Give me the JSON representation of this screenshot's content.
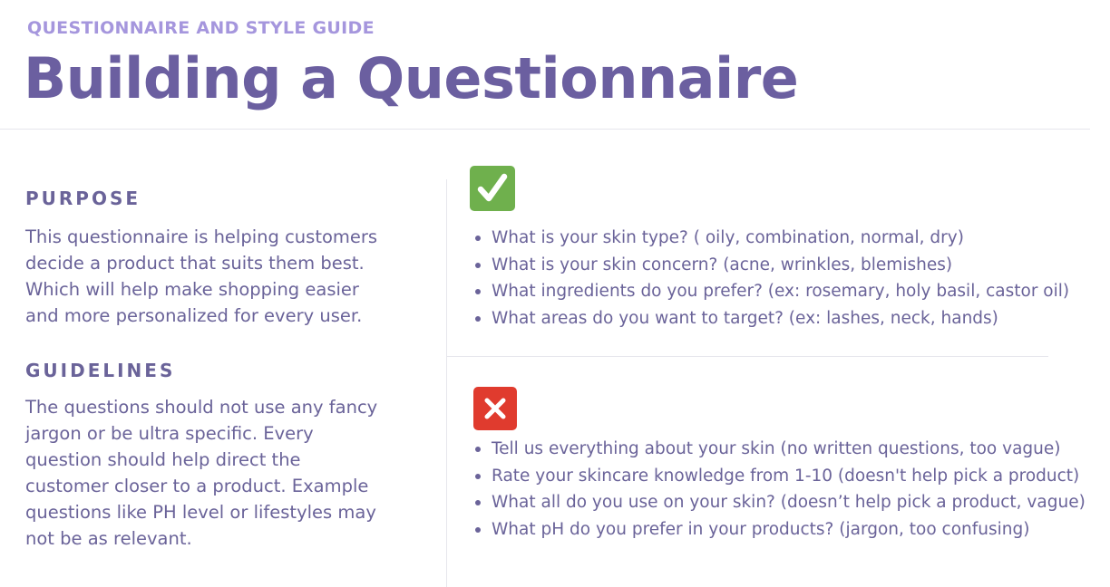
{
  "header": {
    "eyebrow": "QUESTIONNAIRE AND STYLE GUIDE",
    "title": "Building a Questionnaire"
  },
  "purpose": {
    "heading": "PURPOSE",
    "lines": [
      "This questionnaire is helping customers",
      "decide a product that suits them best.",
      "Which will help make shopping easier",
      "and more personalized for every user."
    ]
  },
  "guidelines": {
    "heading": "GUIDELINES",
    "lines": [
      "The questions should not use any fancy",
      "jargon or be ultra specific. Every",
      "question should help direct the",
      "customer closer to a product. Example",
      "questions like PH level or lifestyles may",
      "not be as relevant."
    ]
  },
  "good_examples": {
    "icon": "check-mark-icon",
    "color": "#6fb04d",
    "items": [
      "What is your skin type? ( oily, combination, normal, dry)",
      "What is your skin concern? (acne, wrinkles, blemishes)",
      "What ingredients do you prefer? (ex: rosemary, holy basil, castor oil)",
      "What areas do you want to target? (ex: lashes, neck, hands)"
    ]
  },
  "bad_examples": {
    "icon": "cross-mark-icon",
    "color": "#e03b2e",
    "items": [
      "Tell us everything about your skin (no written questions, too vague)",
      "Rate your skincare knowledge from 1-10 (doesn't help pick a product)",
      "What all do you use on your skin? (doesn’t help pick a product, vague)",
      "What pH do you prefer in your products? (jargon, too confusing)"
    ]
  },
  "colors": {
    "heading": "#6b5fa0",
    "eyebrow": "#a596dd",
    "body": "#6a6399"
  }
}
